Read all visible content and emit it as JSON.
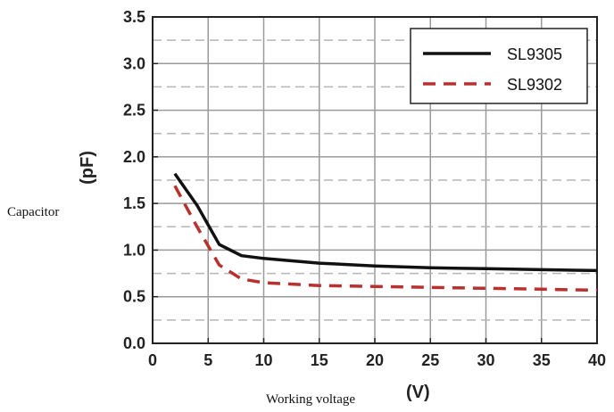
{
  "chart_data": {
    "type": "line",
    "xlabel_text": "Working voltage",
    "xlabel_unit": "(V)",
    "ylabel_text": "Capacitor",
    "ylabel_unit": "(pF)",
    "xlim": [
      0,
      40
    ],
    "ylim": [
      0,
      3.5
    ],
    "xticks": [
      "0",
      "5",
      "10",
      "15",
      "20",
      "25",
      "30",
      "35",
      "40"
    ],
    "yticks": [
      "0.0",
      "0.5",
      "1.0",
      "1.5",
      "2.0",
      "2.5",
      "3.0",
      "3.5"
    ],
    "grid": true,
    "legend_position": "top-right",
    "series": [
      {
        "name": "SL9305",
        "color": "#111111",
        "style": "solid",
        "x": [
          2,
          4,
          6,
          8,
          10,
          15,
          20,
          25,
          30,
          35,
          40
        ],
        "y": [
          1.82,
          1.48,
          1.06,
          0.94,
          0.91,
          0.86,
          0.83,
          0.81,
          0.8,
          0.79,
          0.78
        ]
      },
      {
        "name": "SL9302",
        "color": "#b8312f",
        "style": "dashed",
        "x": [
          2,
          4,
          6,
          8,
          10,
          15,
          20,
          25,
          30,
          35,
          40
        ],
        "y": [
          1.69,
          1.25,
          0.84,
          0.69,
          0.65,
          0.62,
          0.61,
          0.6,
          0.59,
          0.58,
          0.57
        ]
      }
    ]
  }
}
